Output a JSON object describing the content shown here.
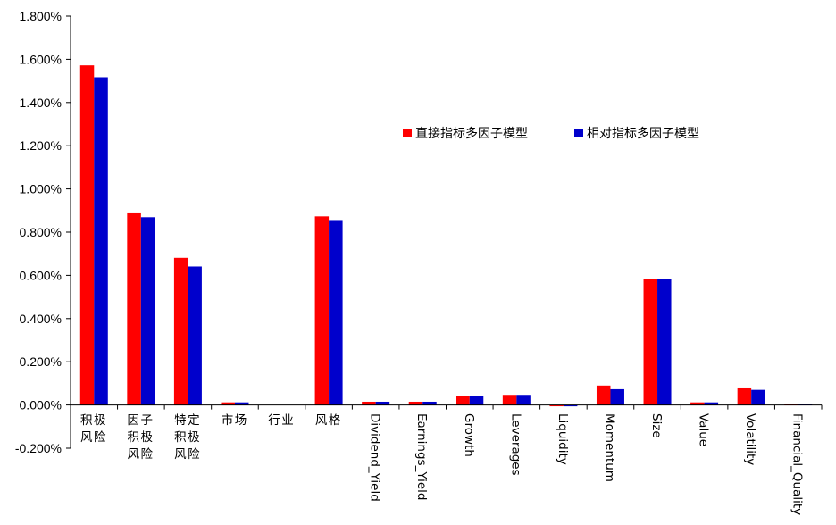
{
  "chart_data": {
    "type": "bar",
    "title": "",
    "xlabel": "",
    "ylabel": "",
    "ylim": [
      -0.2,
      1.8
    ],
    "yticks": [
      -0.2,
      0.0,
      0.2,
      0.4,
      0.6,
      0.8,
      1.0,
      1.2,
      1.4,
      1.6,
      1.8
    ],
    "ytick_labels": [
      "-0.200%",
      "0.000%",
      "0.200%",
      "0.400%",
      "0.600%",
      "0.800%",
      "1.000%",
      "1.200%",
      "1.400%",
      "1.600%",
      "1.800%"
    ],
    "grid": false,
    "legend_position": "upper-right",
    "categories": [
      "积极风险",
      "因子积极风险",
      "特定积极风险",
      "市场",
      "行业",
      "风格",
      "Dividend_Yield",
      "Earnings_Yield",
      "Growth",
      "Leverages",
      "Liquidity",
      "Momentum",
      "Size",
      "Value",
      "Volatility",
      "Financial_Quality"
    ],
    "category_orientation": [
      "vertical",
      "vertical",
      "vertical",
      "vertical",
      "vertical",
      "vertical",
      "rotated",
      "rotated",
      "rotated",
      "rotated",
      "rotated",
      "rotated",
      "rotated",
      "rotated",
      "rotated",
      "rotated"
    ],
    "series": [
      {
        "name": "直接指标多因子模型",
        "color": "#FF0000",
        "values": [
          1.572,
          0.887,
          0.681,
          0.012,
          0.0,
          0.873,
          0.015,
          0.015,
          0.04,
          0.047,
          -0.006,
          0.09,
          0.582,
          0.012,
          0.077,
          0.002
        ]
      },
      {
        "name": "相对指标多因子模型",
        "color": "#0000CC",
        "values": [
          1.517,
          0.869,
          0.641,
          0.012,
          0.0,
          0.856,
          0.015,
          0.015,
          0.043,
          0.047,
          -0.003,
          0.073,
          0.582,
          0.012,
          0.07,
          0.002
        ]
      }
    ]
  }
}
